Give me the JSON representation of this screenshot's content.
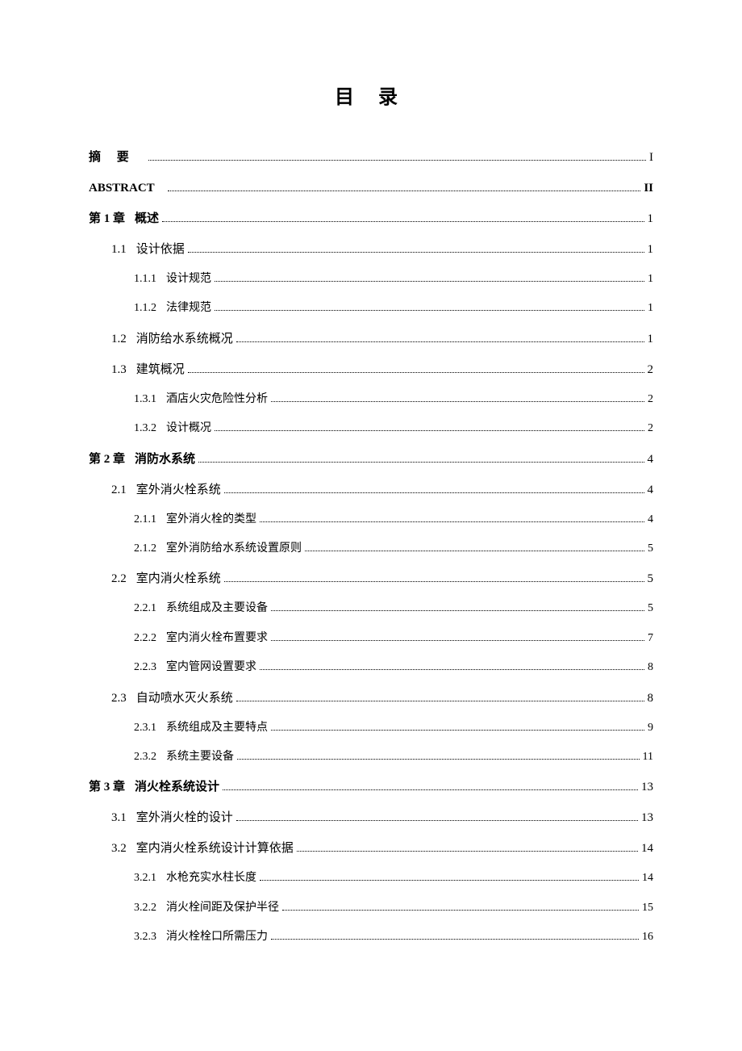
{
  "title": "目  录",
  "entries": [
    {
      "level": 0,
      "label": "摘  要",
      "text": "",
      "page": "I",
      "class": "bold-title"
    },
    {
      "level": 0,
      "label": "ABSTRACT",
      "text": "",
      "page": "II",
      "class": "abstract-en"
    },
    {
      "level": 0,
      "label": "第 1 章",
      "text": "概述",
      "page": "1"
    },
    {
      "level": 1,
      "label": "1.1",
      "text": "设计依据",
      "page": "1"
    },
    {
      "level": 2,
      "label": "1.1.1",
      "text": "设计规范",
      "page": "1"
    },
    {
      "level": 2,
      "label": "1.1.2",
      "text": "法律规范",
      "page": "1"
    },
    {
      "level": 1,
      "label": "1.2",
      "text": "消防给水系统概况",
      "page": "1"
    },
    {
      "level": 1,
      "label": "1.3",
      "text": "建筑概况",
      "page": "2"
    },
    {
      "level": 2,
      "label": "1.3.1",
      "text": "酒店火灾危险性分析",
      "page": "2"
    },
    {
      "level": 2,
      "label": "1.3.2",
      "text": "设计概况",
      "page": "2"
    },
    {
      "level": 0,
      "label": "第 2 章",
      "text": "消防水系统",
      "page": "4"
    },
    {
      "level": 1,
      "label": "2.1",
      "text": "室外消火栓系统",
      "page": "4"
    },
    {
      "level": 2,
      "label": "2.1.1",
      "text": "室外消火栓的类型",
      "page": "4"
    },
    {
      "level": 2,
      "label": "2.1.2",
      "text": "室外消防给水系统设置原则",
      "page": "5"
    },
    {
      "level": 1,
      "label": "2.2",
      "text": "室内消火栓系统",
      "page": "5"
    },
    {
      "level": 2,
      "label": "2.2.1",
      "text": "系统组成及主要设备",
      "page": "5"
    },
    {
      "level": 2,
      "label": "2.2.2",
      "text": "室内消火栓布置要求",
      "page": "7"
    },
    {
      "level": 2,
      "label": "2.2.3",
      "text": "室内管网设置要求",
      "page": "8"
    },
    {
      "level": 1,
      "label": "2.3",
      "text": "自动喷水灭火系统",
      "page": "8"
    },
    {
      "level": 2,
      "label": "2.3.1",
      "text": "系统组成及主要特点",
      "page": "9"
    },
    {
      "level": 2,
      "label": "2.3.2",
      "text": "系统主要设备",
      "page": "11"
    },
    {
      "level": 0,
      "label": "第 3 章",
      "text": "消火栓系统设计",
      "page": "13"
    },
    {
      "level": 1,
      "label": "3.1",
      "text": "室外消火栓的设计",
      "page": "13"
    },
    {
      "level": 1,
      "label": "3.2",
      "text": "室内消火栓系统设计计算依据",
      "page": "14"
    },
    {
      "level": 2,
      "label": "3.2.1",
      "text": "水枪充实水柱长度",
      "page": "14"
    },
    {
      "level": 2,
      "label": "3.2.2",
      "text": "消火栓间距及保护半径",
      "page": "15"
    },
    {
      "level": 2,
      "label": "3.2.3",
      "text": "消火栓栓口所需压力",
      "page": "16"
    }
  ]
}
